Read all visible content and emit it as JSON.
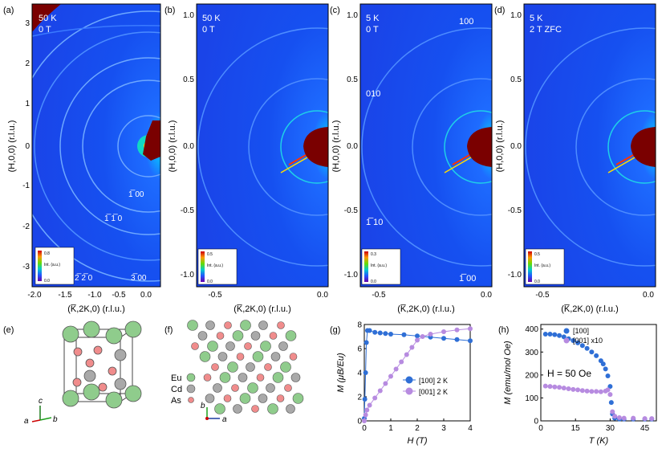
{
  "panels": {
    "a": {
      "label": "(a)",
      "temp": "50 K",
      "field": "0 T",
      "peaks": [
        "1̅ 00",
        "1̅ 1̅ 0",
        "2̅ 2̅ 0",
        "3̅ 00"
      ],
      "xticks": [
        "-2.0",
        "-1.5",
        "-1.0",
        "-0.5",
        "0.0"
      ],
      "yticks": [
        "3",
        "2",
        "1",
        "0",
        "-1",
        "-2",
        "-3"
      ],
      "cbar_max": "0.8",
      "cbar_min": "0.0"
    },
    "b": {
      "label": "(b)",
      "temp": "50 K",
      "field": "0 T",
      "xticks": [
        "-0.5",
        "0.0"
      ],
      "yticks": [
        "1.0",
        "0.5",
        "0.0",
        "-0.5",
        "-1.0"
      ],
      "cbar_max": "0.5",
      "cbar_min": "0.0"
    },
    "c": {
      "label": "(c)",
      "temp": "5 K",
      "field": "0 T",
      "peaks": [
        "100",
        "010",
        "1̅ 10",
        "1̅ 00"
      ],
      "xticks": [
        "-0.5",
        "0.0"
      ],
      "yticks": [
        "1.0",
        "0.5",
        "0.0",
        "-0.5",
        "-1.0"
      ],
      "cbar_max": "0.3",
      "cbar_min": "0.0"
    },
    "d": {
      "label": "(d)",
      "temp": "5 K",
      "field": "2 T ZFC",
      "xticks": [
        "-0.5",
        "0.0"
      ],
      "yticks": [
        "1.0",
        "0.5",
        "0.0",
        "-0.5",
        "-1.0"
      ],
      "cbar_max": "0.5",
      "cbar_min": "0.0"
    },
    "e": {
      "label": "(e)",
      "axes": [
        "a",
        "b",
        "c"
      ]
    },
    "f": {
      "label": "(f)",
      "legend": [
        "Eu",
        "Cd",
        "As"
      ],
      "axes": [
        "b",
        "a"
      ]
    },
    "g": {
      "label": "(g)"
    },
    "h": {
      "label": "(h)",
      "annotation": "H = 50 Oe"
    }
  },
  "axis_labels": {
    "h_axis": "(H,0,0) (r.l.u.)",
    "k_axis": "(K̅,2K,0) (r.l.u.)",
    "cbar": "Int. (a.u.)"
  },
  "colors": {
    "eu": "#8fcc8c",
    "cd": "#a9a9a9",
    "as": "#f08c8c",
    "blue": "#2f6fd6",
    "purple": "#b78be0",
    "dark_red": "#7a0000"
  },
  "chart_data": [
    {
      "type": "line",
      "panel": "g",
      "xlabel": "H (T)",
      "ylabel": "M (μB/Eu)",
      "xlim": [
        0,
        4
      ],
      "ylim": [
        0,
        8
      ],
      "xticks": [
        0,
        1,
        2,
        3,
        4
      ],
      "yticks": [
        0,
        2,
        4,
        6,
        8
      ],
      "series": [
        {
          "name": "[100] 2 K",
          "color": "#2f6fd6",
          "x": [
            0.0,
            0.02,
            0.05,
            0.08,
            0.12,
            0.2,
            0.4,
            0.6,
            0.8,
            1.0,
            1.5,
            2.0,
            2.5,
            3.0,
            3.5,
            4.0
          ],
          "y": [
            0.2,
            1.8,
            4.0,
            6.5,
            7.5,
            7.5,
            7.35,
            7.3,
            7.25,
            7.2,
            7.15,
            7.05,
            6.95,
            6.85,
            6.75,
            6.65
          ]
        },
        {
          "name": "[001] 2 K",
          "color": "#b78be0",
          "x": [
            0.0,
            0.05,
            0.1,
            0.2,
            0.4,
            0.6,
            0.8,
            1.0,
            1.2,
            1.4,
            1.6,
            1.8,
            2.0,
            2.2,
            2.5,
            3.0,
            3.5,
            4.0
          ],
          "y": [
            0.0,
            0.5,
            0.9,
            1.3,
            1.9,
            2.5,
            3.1,
            3.7,
            4.3,
            4.9,
            5.5,
            6.1,
            6.7,
            7.0,
            7.2,
            7.4,
            7.55,
            7.65
          ]
        }
      ]
    },
    {
      "type": "scatter",
      "panel": "h",
      "xlabel": "T (K)",
      "ylabel": "M (emu/mol Oe)",
      "xlim": [
        0,
        50
      ],
      "ylim": [
        0,
        420
      ],
      "xticks": [
        0,
        15,
        30,
        45
      ],
      "yticks": [
        0,
        100,
        200,
        300,
        400
      ],
      "series": [
        {
          "name": "[100]",
          "color": "#2f6fd6",
          "x": [
            2,
            4,
            6,
            8,
            10,
            12,
            14,
            16,
            18,
            20,
            22,
            24,
            26,
            27,
            28,
            29,
            30,
            30.5,
            31,
            32,
            34,
            36,
            40,
            45,
            48
          ],
          "y": [
            378,
            378,
            376,
            372,
            366,
            358,
            350,
            340,
            328,
            316,
            300,
            284,
            262,
            248,
            226,
            196,
            150,
            80,
            30,
            12,
            8,
            8,
            8,
            8,
            8
          ]
        },
        {
          "name": "[001] x10",
          "color": "#b78be0",
          "x": [
            2,
            4,
            6,
            8,
            10,
            12,
            14,
            16,
            18,
            20,
            22,
            24,
            26,
            28,
            29,
            30,
            31,
            32,
            34,
            36,
            40,
            45,
            48
          ],
          "y": [
            152,
            150,
            148,
            146,
            143,
            140,
            137,
            135,
            132,
            130,
            128,
            128,
            127,
            130,
            135,
            115,
            40,
            20,
            14,
            12,
            12,
            10,
            10
          ]
        }
      ]
    }
  ]
}
